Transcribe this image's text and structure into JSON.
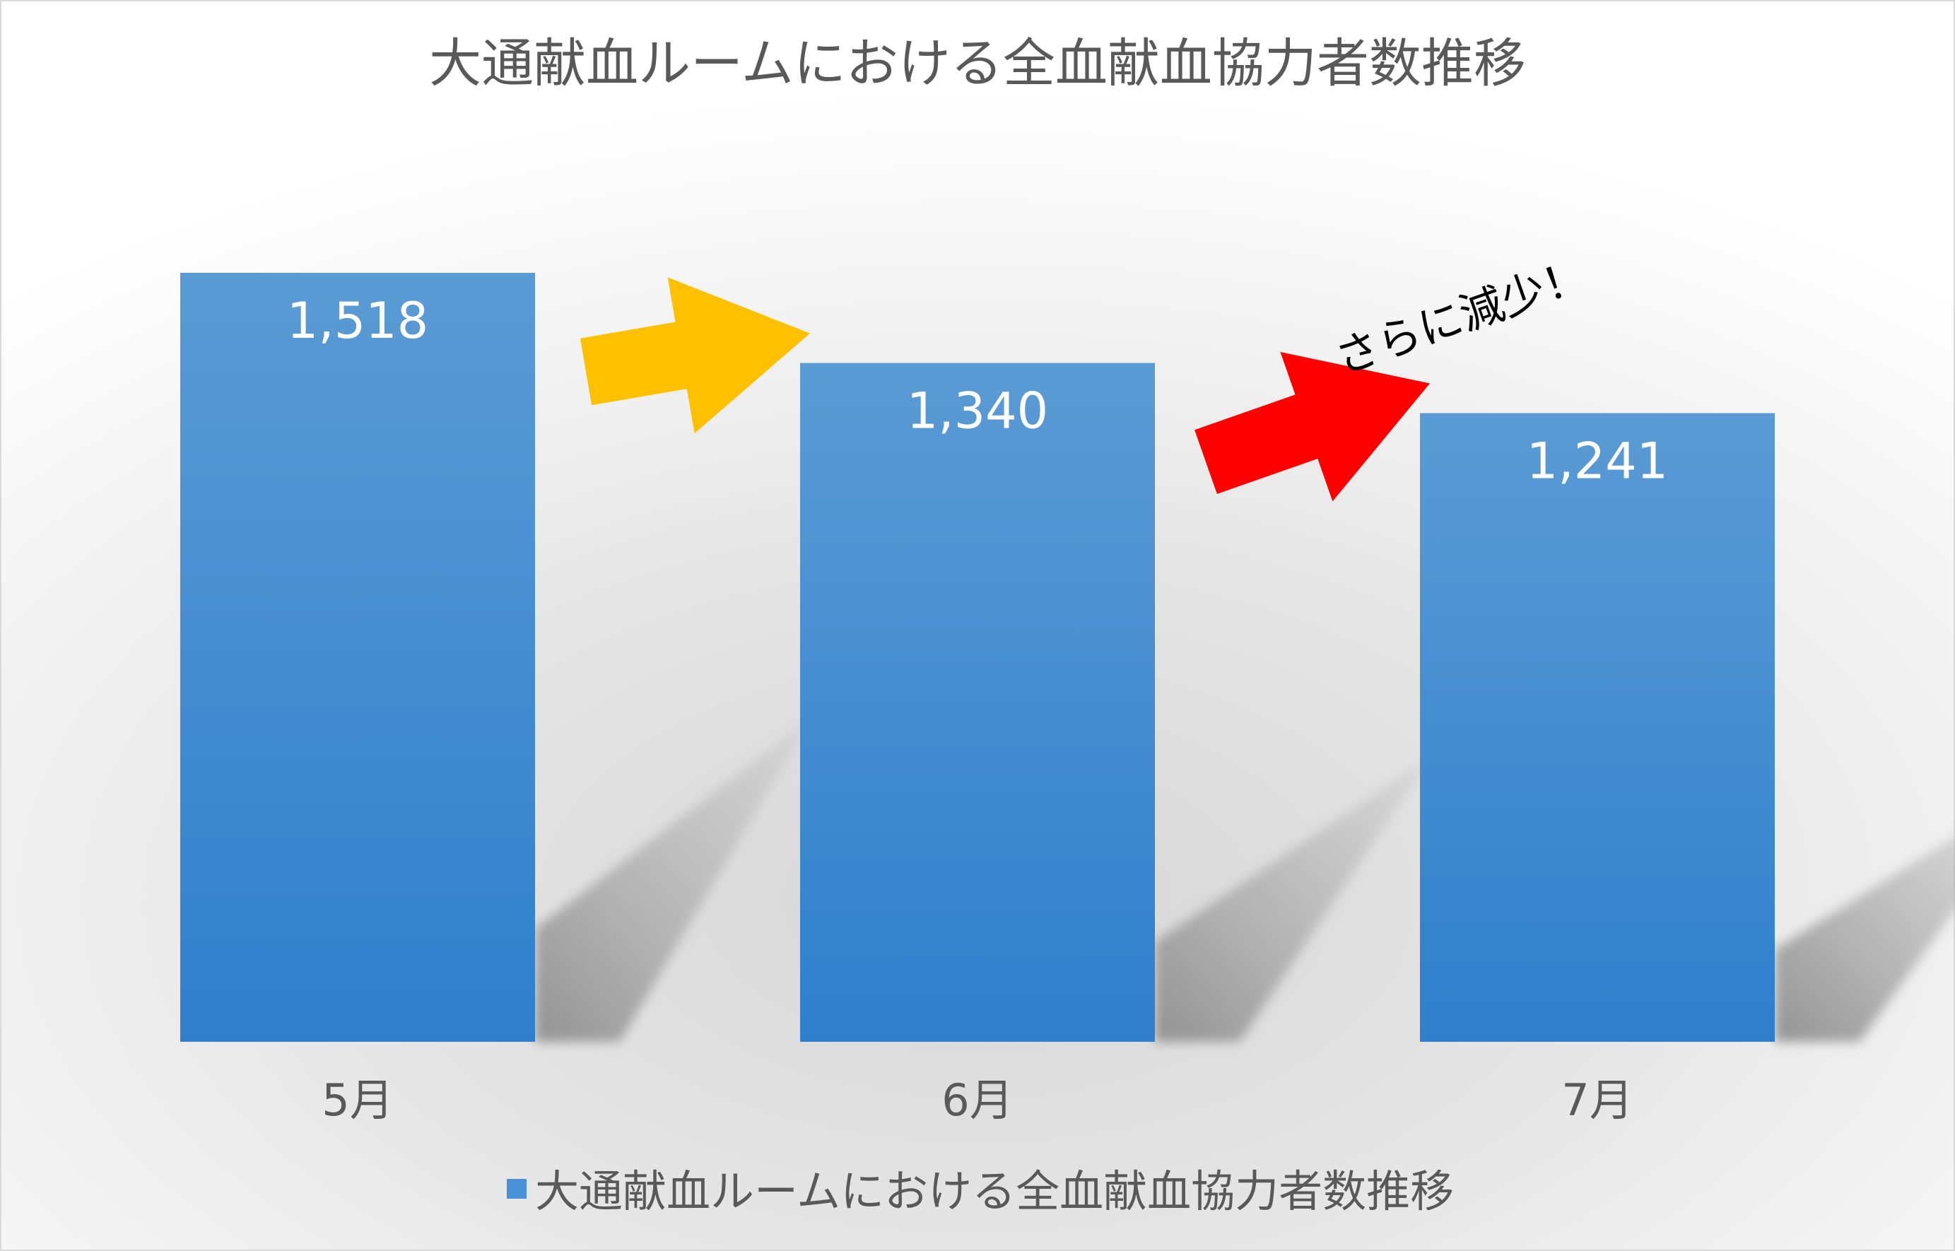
{
  "chart_data": {
    "type": "bar",
    "title": "大通献血ルームにおける全血献血協力者数推移",
    "categories": [
      "5月",
      "6月",
      "7月"
    ],
    "series": [
      {
        "name": "大通献血ルームにおける全血献血協力者数推移",
        "values": [
          1518,
          1340,
          1241
        ],
        "value_labels": [
          "1,518",
          "1,340",
          "1,241"
        ],
        "color": "#4A90D9"
      }
    ],
    "ylim": [
      0,
      1518
    ],
    "grid": false,
    "legend": "bottom",
    "annotations": [
      {
        "text": "",
        "arrow_color": "#FFC000",
        "from": "5月",
        "to": "6月"
      },
      {
        "text": "さらに減少！",
        "arrow_color": "#FF0000",
        "from": "6月",
        "to": "7月"
      }
    ]
  }
}
